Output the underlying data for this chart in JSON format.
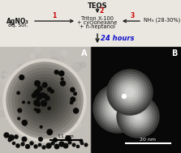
{
  "bg_color": "#eae7e0",
  "title_text": "TEOS",
  "step1_label": "1",
  "step2_label": "2",
  "step3_label": "3",
  "left_text_line1": "AgNO₃",
  "left_text_line2": "aq. sol.",
  "center_text_line1": "Triton X-100",
  "center_text_line2": "+ cyclohexane",
  "center_text_line3": "+ n-heptanol",
  "right_text_line1": "NH₃ (28-30%)",
  "bottom_arrow_text": "24 hours",
  "label_A": "A",
  "label_B": "B",
  "scalebar_A": "11 nm",
  "scalebar_B": "20 nm",
  "arrow_color": "#111111",
  "step_color": "#cc0000",
  "hours_color": "#1111cc",
  "text_color": "#111111"
}
